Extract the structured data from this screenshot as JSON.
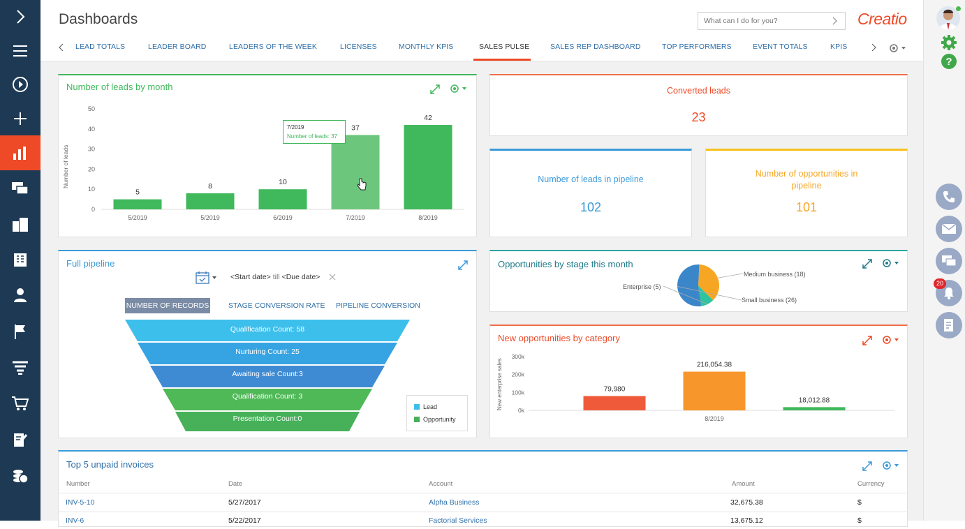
{
  "app": {
    "title": "Dashboards",
    "brand": "Creatio",
    "search_placeholder": "What can I do for you?"
  },
  "sidebar": {
    "items": [
      "expand",
      "menu",
      "play",
      "add",
      "dashboards",
      "feed",
      "accounts",
      "contacts-book",
      "contacts",
      "campaigns",
      "leads",
      "orders",
      "documents",
      "finance"
    ]
  },
  "tabs": [
    "LEAD TOTALS",
    "LEADER BOARD",
    "LEADERS OF THE WEEK",
    "LICENSES",
    "MONTHLY KPIS",
    "SALES PULSE",
    "SALES REP DASHBOARD",
    "TOP PERFORMERS",
    "EVENT TOTALS",
    "KPIS"
  ],
  "active_tab": "SALES PULSE",
  "leads_chart": {
    "title": "Number of leads by month",
    "ylabel": "Number of leads",
    "tooltip_date": "7/2019",
    "tooltip_label": "Number of leads: 37"
  },
  "converted": {
    "title": "Converted leads",
    "value": "23"
  },
  "pipeline_leads": {
    "title": "Number of leads in pipeline",
    "value": "102"
  },
  "pipeline_opps": {
    "title": "Number of opportunities in pipeline",
    "value": "101"
  },
  "full_pipeline": {
    "title": "Full pipeline",
    "start": "<Start date>",
    "till": "till",
    "due": "<Due date>",
    "btn_records": "NUMBER OF RECORDS",
    "btn_stage": "STAGE CONVERSION RATE",
    "btn_pipeline": "PIPELINE CONVERSION",
    "stages": [
      "Qualification Count: 58",
      "Nurturing Count: 25",
      "Awaiting sale Count:3",
      "Qualification Count: 3",
      "Presentation Count:0"
    ],
    "legend": [
      "Lead",
      "Opportunity"
    ]
  },
  "opps_stage": {
    "title": "Opportunities by stage this month",
    "labels": [
      "Medium business (18)",
      "Enterprise (5)",
      "Small business (26)"
    ]
  },
  "new_opps": {
    "title": "New opportunities by category",
    "ylabel": "New enterprise sales"
  },
  "invoices": {
    "title": "Top 5 unpaid invoices",
    "headers": [
      "Number",
      "Date",
      "Account",
      "Amount",
      "Currency"
    ],
    "rows": [
      {
        "number": "INV-5-10",
        "date": "5/27/2017",
        "account": "Alpha Business",
        "amount": "32,675.38",
        "currency": "$"
      },
      {
        "number": "INV-6",
        "date": "5/22/2017",
        "account": "Factorial Services",
        "amount": "13,675.12",
        "currency": "$"
      }
    ]
  },
  "notifications": {
    "count": "20"
  },
  "colors": {
    "sidebar": "#1d3954",
    "accent": "#ee4a27",
    "green": "#40b85c",
    "blue": "#3b9ad9",
    "orange": "#f7a623"
  },
  "chart_data": [
    {
      "type": "bar",
      "title": "Number of leads by month",
      "ylabel": "Number of leads",
      "categories": [
        "5/2019",
        "5/2019",
        "6/2019",
        "7/2019",
        "8/2019"
      ],
      "values": [
        5,
        8,
        10,
        37,
        42
      ],
      "ylim": [
        0,
        50
      ],
      "yticks": [
        0,
        10,
        20,
        30,
        40,
        50
      ]
    },
    {
      "type": "pie",
      "title": "Opportunities by stage this month",
      "categories": [
        "Medium business",
        "Enterprise",
        "Small business"
      ],
      "values": [
        18,
        5,
        26
      ],
      "colors": [
        "#f7a623",
        "#2ec4a0",
        "#3b86c9"
      ]
    },
    {
      "type": "bar",
      "title": "New opportunities by category",
      "ylabel": "New enterprise sales",
      "categories": [
        "8/2019"
      ],
      "series": [
        {
          "values": [
            79980
          ],
          "label": "79,980"
        },
        {
          "values": [
            216054.38
          ],
          "label": "216,054.38"
        },
        {
          "values": [
            18012.88
          ],
          "label": "18,012.88"
        }
      ],
      "ylim": [
        0,
        300000
      ],
      "yticks": [
        "0k",
        "100k",
        "200k",
        "300k"
      ]
    }
  ]
}
